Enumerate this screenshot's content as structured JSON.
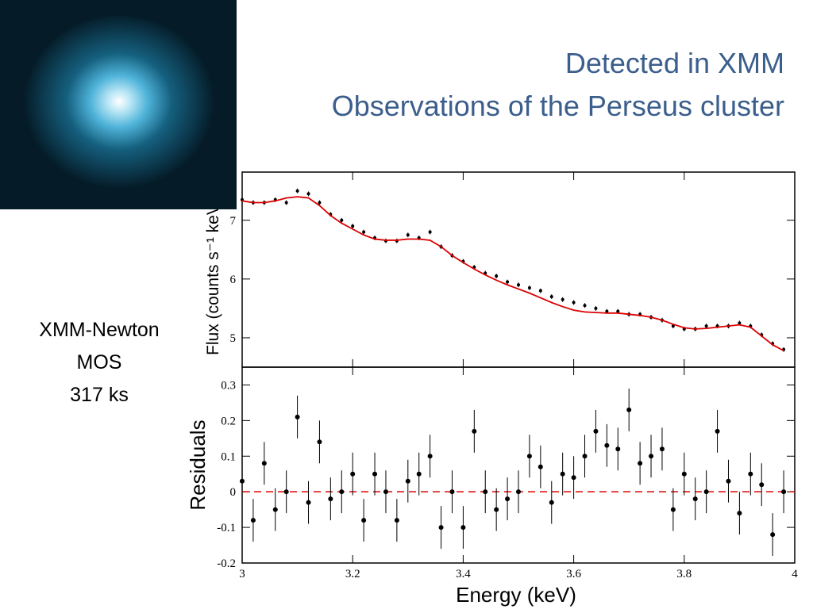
{
  "slide": {
    "title": [
      "Detected in XMM",
      "Observations of the Perseus cluster"
    ],
    "caption": [
      "XMM-Newton",
      "MOS",
      "317 ks"
    ]
  },
  "chart_data": [
    {
      "type": "scatter",
      "ylabel": "Flux (counts s⁻¹ keV⁻¹)",
      "x": [
        3.0,
        3.02,
        3.04,
        3.06,
        3.08,
        3.1,
        3.12,
        3.14,
        3.16,
        3.18,
        3.2,
        3.22,
        3.24,
        3.26,
        3.28,
        3.3,
        3.32,
        3.34,
        3.36,
        3.38,
        3.4,
        3.42,
        3.44,
        3.46,
        3.48,
        3.5,
        3.52,
        3.54,
        3.56,
        3.58,
        3.6,
        3.62,
        3.64,
        3.66,
        3.68,
        3.7,
        3.72,
        3.74,
        3.76,
        3.78,
        3.8,
        3.82,
        3.84,
        3.86,
        3.88,
        3.9,
        3.92,
        3.94,
        3.96,
        3.98
      ],
      "series": [
        {
          "style": "points",
          "color": "#000000",
          "yerr": 0.04,
          "values": [
            7.35,
            7.3,
            7.3,
            7.35,
            7.3,
            7.5,
            7.45,
            7.3,
            7.1,
            7.0,
            6.9,
            6.8,
            6.7,
            6.65,
            6.65,
            6.75,
            6.7,
            6.8,
            6.55,
            6.4,
            6.3,
            6.2,
            6.1,
            6.05,
            5.95,
            5.9,
            5.85,
            5.8,
            5.7,
            5.65,
            5.6,
            5.55,
            5.5,
            5.45,
            5.45,
            5.4,
            5.4,
            5.35,
            5.3,
            5.2,
            5.15,
            5.15,
            5.2,
            5.2,
            5.2,
            5.25,
            5.2,
            5.05,
            4.9,
            4.8
          ]
        },
        {
          "style": "line",
          "color": "#dd0000",
          "values": [
            7.33,
            7.3,
            7.3,
            7.33,
            7.38,
            7.4,
            7.38,
            7.25,
            7.08,
            6.95,
            6.85,
            6.75,
            6.68,
            6.66,
            6.66,
            6.68,
            6.68,
            6.66,
            6.55,
            6.4,
            6.28,
            6.17,
            6.07,
            5.98,
            5.9,
            5.83,
            5.76,
            5.68,
            5.6,
            5.53,
            5.47,
            5.44,
            5.43,
            5.42,
            5.42,
            5.4,
            5.38,
            5.35,
            5.3,
            5.23,
            5.17,
            5.15,
            5.16,
            5.18,
            5.2,
            5.22,
            5.18,
            5.03,
            4.88,
            4.78
          ]
        }
      ],
      "xlim": [
        3,
        4
      ],
      "xticks": [
        3,
        3.2,
        3.4,
        3.6,
        3.8,
        4
      ],
      "ylim": [
        4.5,
        7.82
      ],
      "yticks": [
        5,
        6,
        7
      ]
    },
    {
      "type": "scatter",
      "ylabel": "Residuals",
      "xlabel": "Energy (keV)",
      "x": [
        3.0,
        3.02,
        3.04,
        3.06,
        3.08,
        3.1,
        3.12,
        3.14,
        3.16,
        3.18,
        3.2,
        3.22,
        3.24,
        3.26,
        3.28,
        3.3,
        3.32,
        3.34,
        3.36,
        3.38,
        3.4,
        3.42,
        3.44,
        3.46,
        3.48,
        3.5,
        3.52,
        3.54,
        3.56,
        3.58,
        3.6,
        3.62,
        3.64,
        3.66,
        3.68,
        3.7,
        3.72,
        3.74,
        3.76,
        3.78,
        3.8,
        3.82,
        3.84,
        3.86,
        3.88,
        3.9,
        3.92,
        3.94,
        3.96,
        3.98
      ],
      "series": [
        {
          "style": "points",
          "color": "#000000",
          "yerr": 0.06,
          "values": [
            0.03,
            -0.08,
            0.08,
            -0.05,
            0.0,
            0.21,
            -0.03,
            0.14,
            -0.02,
            0.0,
            0.05,
            -0.08,
            0.05,
            0.0,
            -0.08,
            0.03,
            0.05,
            0.1,
            -0.1,
            0.0,
            -0.1,
            0.17,
            0.0,
            -0.05,
            -0.02,
            0.0,
            0.1,
            0.07,
            -0.03,
            0.05,
            0.04,
            0.1,
            0.17,
            0.13,
            0.12,
            0.23,
            0.08,
            0.1,
            0.12,
            -0.05,
            0.05,
            -0.02,
            0.0,
            0.17,
            0.03,
            -0.06,
            0.05,
            0.02,
            -0.12,
            0.0
          ]
        }
      ],
      "reference_line": 0,
      "reference_color": "#dd0000",
      "xlim": [
        3,
        4
      ],
      "xticks": [
        3,
        3.2,
        3.4,
        3.6,
        3.8,
        4
      ],
      "ylim": [
        -0.2,
        0.35
      ],
      "yticks": [
        0.3,
        0.2,
        0.1,
        0,
        -0.1,
        -0.2
      ]
    }
  ]
}
